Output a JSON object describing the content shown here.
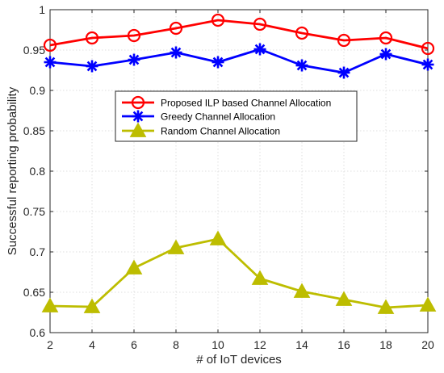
{
  "chart_data": {
    "type": "line",
    "title": "",
    "xlabel": "# of IoT devices",
    "ylabel": "Successful reporting probability",
    "xlim": [
      2,
      20
    ],
    "ylim": [
      0.6,
      1.0
    ],
    "xticks": [
      2,
      4,
      6,
      8,
      10,
      12,
      14,
      16,
      18,
      20
    ],
    "yticks": [
      0.6,
      0.65,
      0.7,
      0.75,
      0.8,
      0.85,
      0.9,
      0.95,
      1.0
    ],
    "xtick_labels": [
      "2",
      "4",
      "6",
      "8",
      "10",
      "12",
      "14",
      "16",
      "18",
      "20"
    ],
    "ytick_labels": [
      "0.6",
      "0.65",
      "0.7",
      "0.75",
      "0.8",
      "0.85",
      "0.9",
      "0.95",
      "1"
    ],
    "grid": true,
    "legend_position": "upper-center",
    "x": [
      2,
      4,
      6,
      8,
      10,
      12,
      14,
      16,
      18,
      20
    ],
    "series": [
      {
        "name": "Proposed ILP based Channel Allocation",
        "color": "#ff0000",
        "marker": "circle",
        "values": [
          0.956,
          0.965,
          0.968,
          0.977,
          0.987,
          0.982,
          0.971,
          0.962,
          0.965,
          0.952
        ]
      },
      {
        "name": "Greedy Channel Allocation",
        "color": "#0000ff",
        "marker": "asterisk",
        "values": [
          0.935,
          0.93,
          0.938,
          0.947,
          0.935,
          0.951,
          0.931,
          0.922,
          0.945,
          0.932
        ]
      },
      {
        "name": "Random Channel Allocation",
        "color": "#bdbd00",
        "marker": "triangle",
        "values": [
          0.633,
          0.632,
          0.68,
          0.705,
          0.716,
          0.667,
          0.651,
          0.641,
          0.631,
          0.634
        ]
      }
    ]
  }
}
